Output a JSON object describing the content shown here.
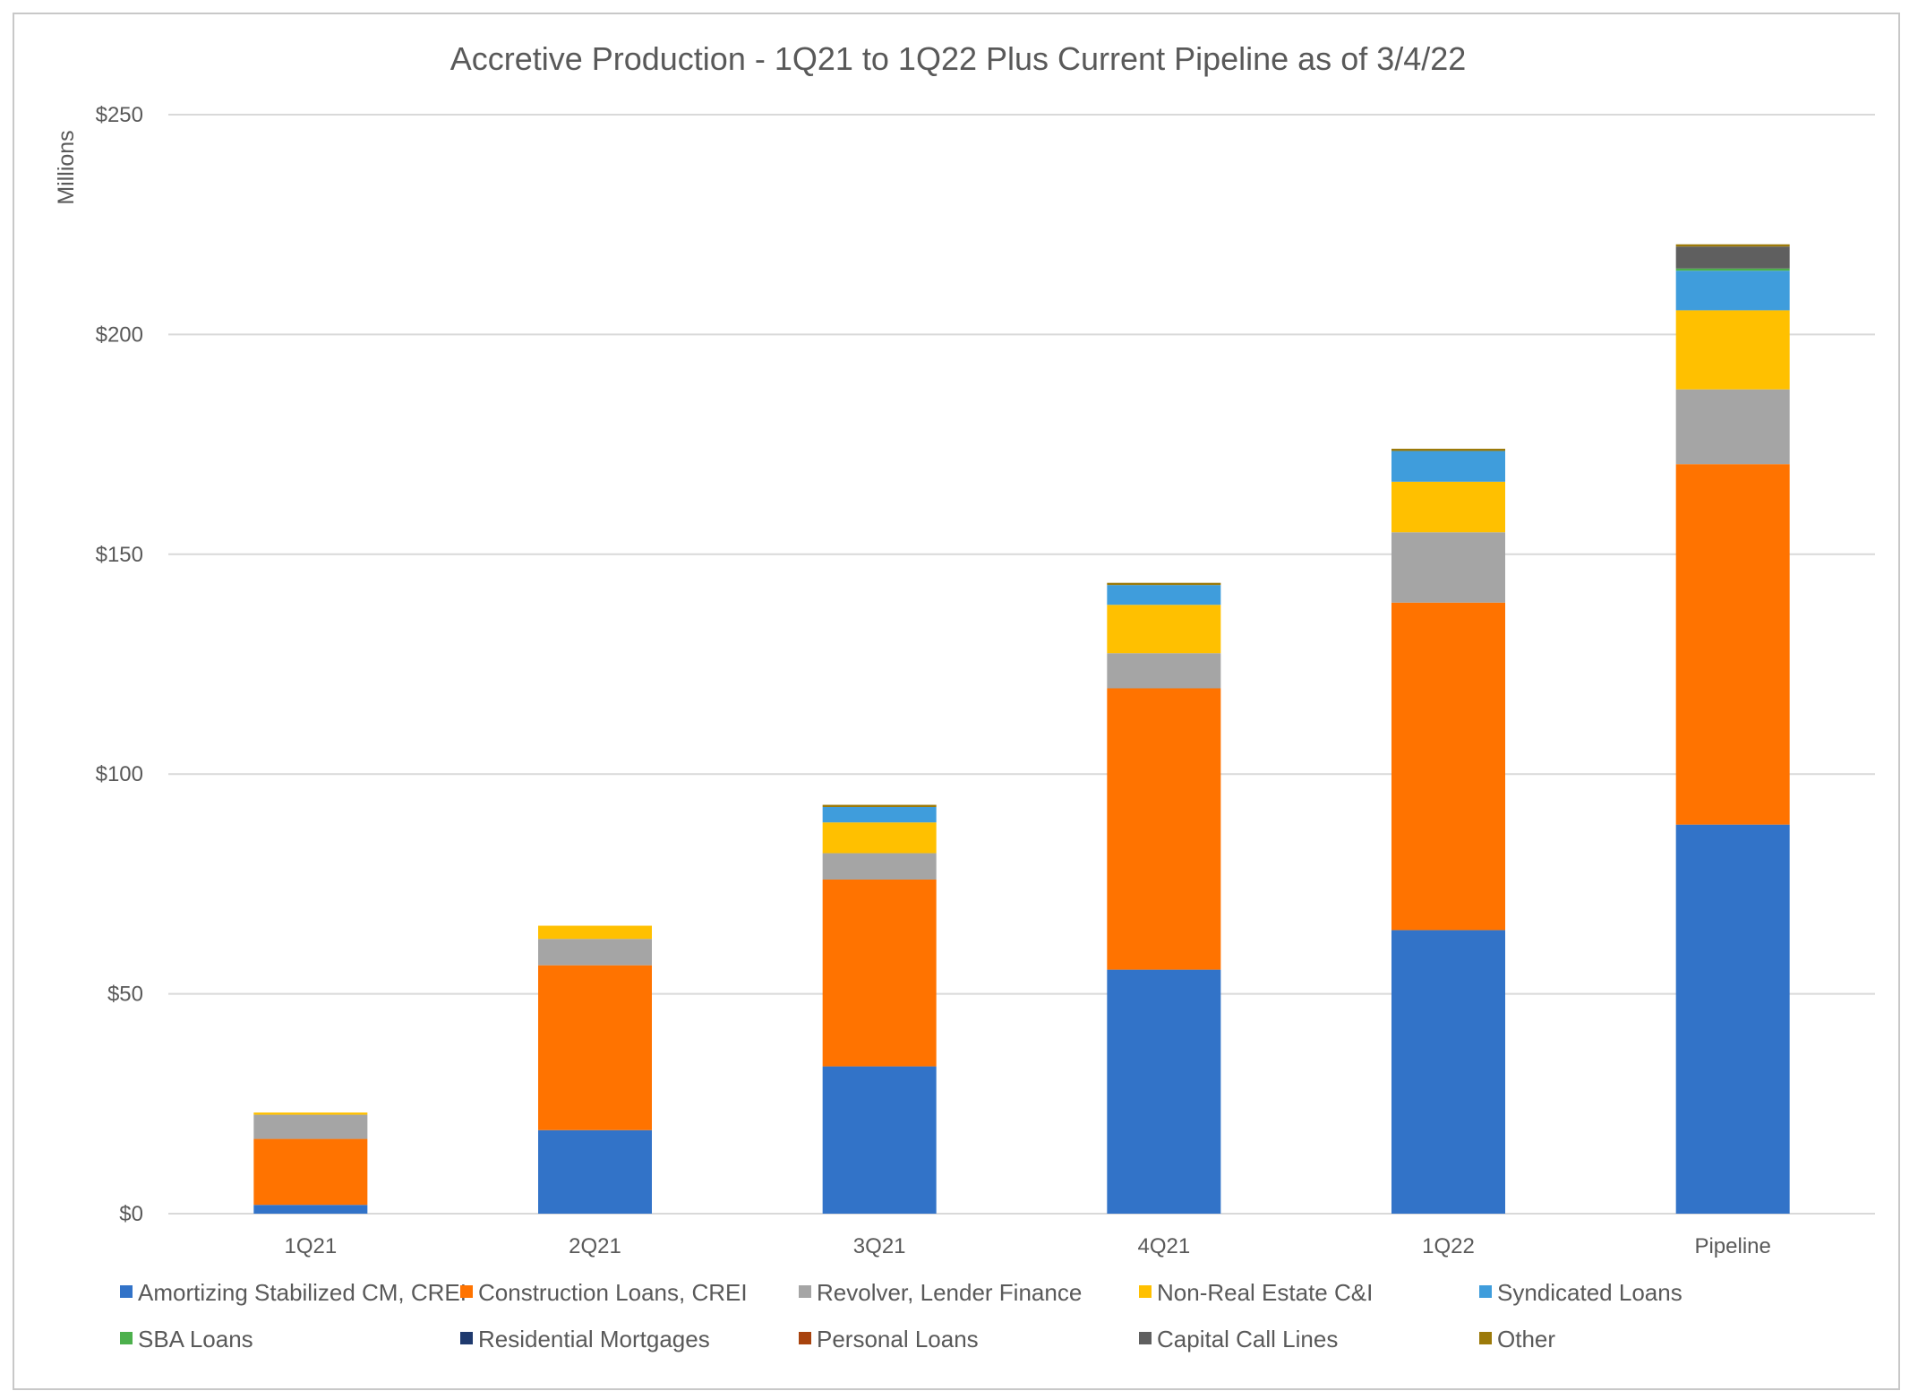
{
  "chart_data": {
    "type": "bar",
    "stacked": true,
    "title": "Accretive Production - 1Q21 to 1Q22 Plus Current Pipeline as of 3/4/22",
    "xlabel": "",
    "ylabel": "Millions",
    "ylim": [
      0,
      250
    ],
    "yticks": [
      0,
      50,
      100,
      150,
      200,
      250
    ],
    "ytick_labels": [
      "$0",
      "$50",
      "$100",
      "$150",
      "$200",
      "$250"
    ],
    "grid": true,
    "legend_position": "bottom",
    "categories": [
      "1Q21",
      "2Q21",
      "3Q21",
      "4Q21",
      "1Q22",
      "Pipeline"
    ],
    "series": [
      {
        "name": "Amortizing Stabilized CM, CREI",
        "color": "#3273c8",
        "values": [
          2,
          19,
          33.5,
          55.5,
          64.5,
          88.5
        ]
      },
      {
        "name": "Construction Loans, CREI",
        "color": "#ff7300",
        "values": [
          15,
          37.5,
          42.5,
          64,
          74.5,
          82
        ]
      },
      {
        "name": "Revolver, Lender Finance",
        "color": "#a5a5a5",
        "values": [
          5.5,
          6,
          6,
          8,
          16,
          17
        ]
      },
      {
        "name": "Non-Real Estate C&I",
        "color": "#ffc000",
        "values": [
          0.5,
          3,
          7,
          11,
          11.5,
          18
        ]
      },
      {
        "name": "Syndicated Loans",
        "color": "#3f9ddc",
        "values": [
          0,
          0,
          3.5,
          4.5,
          7,
          9
        ]
      },
      {
        "name": "SBA Loans",
        "color": "#4cb04c",
        "values": [
          0,
          0,
          0,
          0,
          0,
          0.5
        ]
      },
      {
        "name": "Residential Mortgages",
        "color": "#1f3a6e",
        "values": [
          0,
          0,
          0,
          0,
          0,
          0
        ]
      },
      {
        "name": "Personal Loans",
        "color": "#a8430e",
        "values": [
          0,
          0,
          0,
          0,
          0,
          0
        ]
      },
      {
        "name": "Capital Call Lines",
        "color": "#5f5f5f",
        "values": [
          0,
          0,
          0,
          0,
          0,
          5
        ]
      },
      {
        "name": "Other",
        "color": "#9c7a0a",
        "values": [
          0,
          0,
          0.5,
          0.5,
          0.5,
          0.5
        ]
      }
    ]
  }
}
